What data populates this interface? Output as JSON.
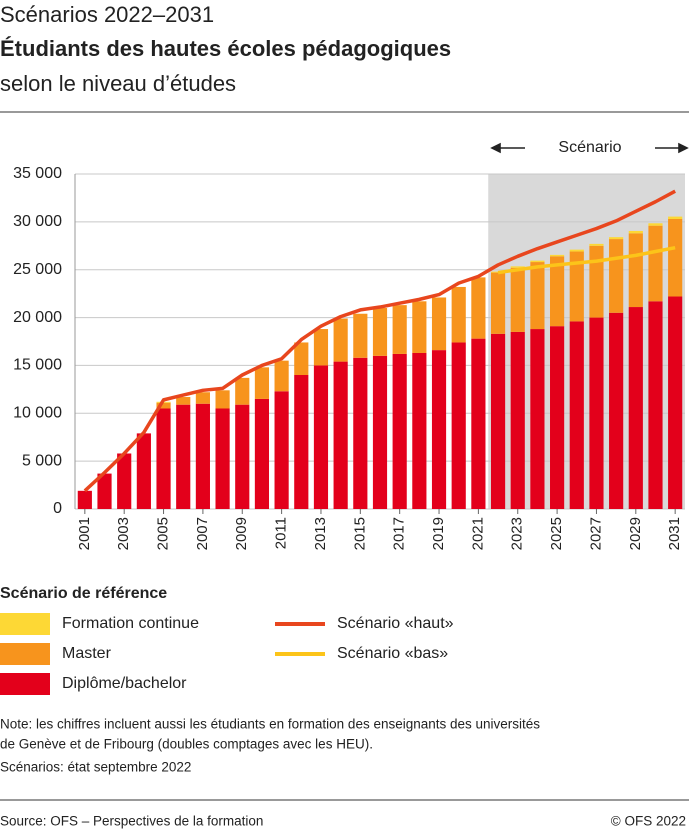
{
  "header": {
    "supertitle": "Scénarios 2022–2031",
    "title": "Étudiants des hautes écoles pédagogiques",
    "subtitle": "selon le niveau d’études"
  },
  "chart_data": {
    "type": "bar",
    "stacked": true,
    "x": [
      2001,
      2002,
      2003,
      2004,
      2005,
      2006,
      2007,
      2008,
      2009,
      2010,
      2011,
      2012,
      2013,
      2014,
      2015,
      2016,
      2017,
      2018,
      2019,
      2020,
      2021,
      2022,
      2023,
      2024,
      2025,
      2026,
      2027,
      2028,
      2029,
      2030,
      2031
    ],
    "xlim": [
      2000.5,
      2031.5
    ],
    "xticks": [
      2001,
      2003,
      2005,
      2007,
      2009,
      2011,
      2013,
      2015,
      2017,
      2019,
      2021,
      2023,
      2025,
      2027,
      2029,
      2031
    ],
    "series": [
      {
        "name": "Diplôme/bachelor",
        "color": "#e3001b",
        "values": [
          1900,
          3700,
          5800,
          7900,
          10500,
          10900,
          11000,
          10500,
          10900,
          11500,
          12300,
          14000,
          15000,
          15400,
          15800,
          16000,
          16200,
          16300,
          16600,
          17400,
          17800,
          18300,
          18500,
          18800,
          19100,
          19600,
          20000,
          20500,
          21100,
          21700,
          22200
        ]
      },
      {
        "name": "Master",
        "color": "#f7941d",
        "values": [
          0,
          0,
          0,
          0,
          600,
          800,
          1200,
          1900,
          2800,
          3300,
          3200,
          3400,
          3800,
          4500,
          4600,
          5000,
          5100,
          5400,
          5500,
          5800,
          6400,
          6400,
          6700,
          7000,
          7300,
          7300,
          7500,
          7700,
          7700,
          7900,
          8100
        ]
      },
      {
        "name": "Formation continue",
        "color": "#fdd835",
        "values": [
          0,
          0,
          0,
          0,
          100,
          0,
          0,
          0,
          0,
          0,
          0,
          0,
          0,
          0,
          0,
          0,
          0,
          0,
          0,
          0,
          0,
          100,
          150,
          150,
          150,
          200,
          200,
          200,
          250,
          250,
          250
        ]
      }
    ],
    "lines": [
      {
        "name": "Scénario «haut»",
        "color": "#e8461e",
        "values": [
          1900,
          3800,
          5800,
          8000,
          11400,
          11900,
          12400,
          12600,
          14000,
          15000,
          15700,
          17700,
          19100,
          20100,
          20800,
          21100,
          21500,
          21900,
          22400,
          23600,
          24300,
          25500,
          26400,
          27200,
          27900,
          28600,
          29300,
          30100,
          31100,
          32100,
          33200
        ]
      },
      {
        "name": "Scénario «bas»",
        "color": "#fcc419",
        "values": [
          null,
          null,
          null,
          null,
          null,
          null,
          null,
          null,
          null,
          null,
          null,
          null,
          null,
          null,
          null,
          null,
          null,
          null,
          null,
          null,
          null,
          24700,
          25000,
          25300,
          25500,
          25700,
          25900,
          26200,
          26500,
          26900,
          27300
        ]
      }
    ],
    "ylim": [
      0,
      35000
    ],
    "yticks": [
      0,
      {
        "value": 5000,
        "label": "5 000"
      },
      {
        "value": 10000,
        "label": "10 000"
      },
      {
        "value": 15000,
        "label": "15 000"
      },
      {
        "value": 20000,
        "label": "20 000"
      },
      {
        "value": 25000,
        "label": "25 000"
      },
      {
        "value": 30000,
        "label": "30 000"
      },
      {
        "value": 35000,
        "label": "35 000"
      }
    ],
    "grid": true,
    "scenario": {
      "label": "Scénario",
      "xlim": [
        2021.5,
        2031.5
      ],
      "color": "#d9d9d9"
    },
    "legend_title": "Scénario de référence"
  },
  "notes": [
    "Note: les chiffres incluent aussi les étudiants en formation des enseignants des universités",
    "de Genève et de Fribourg (doubles comptages avec les HEU).",
    "Scénarios: état septembre 2022"
  ],
  "footer": {
    "source": "Source: OFS – Perspectives de la formation",
    "copyright": "© OFS 2022"
  }
}
